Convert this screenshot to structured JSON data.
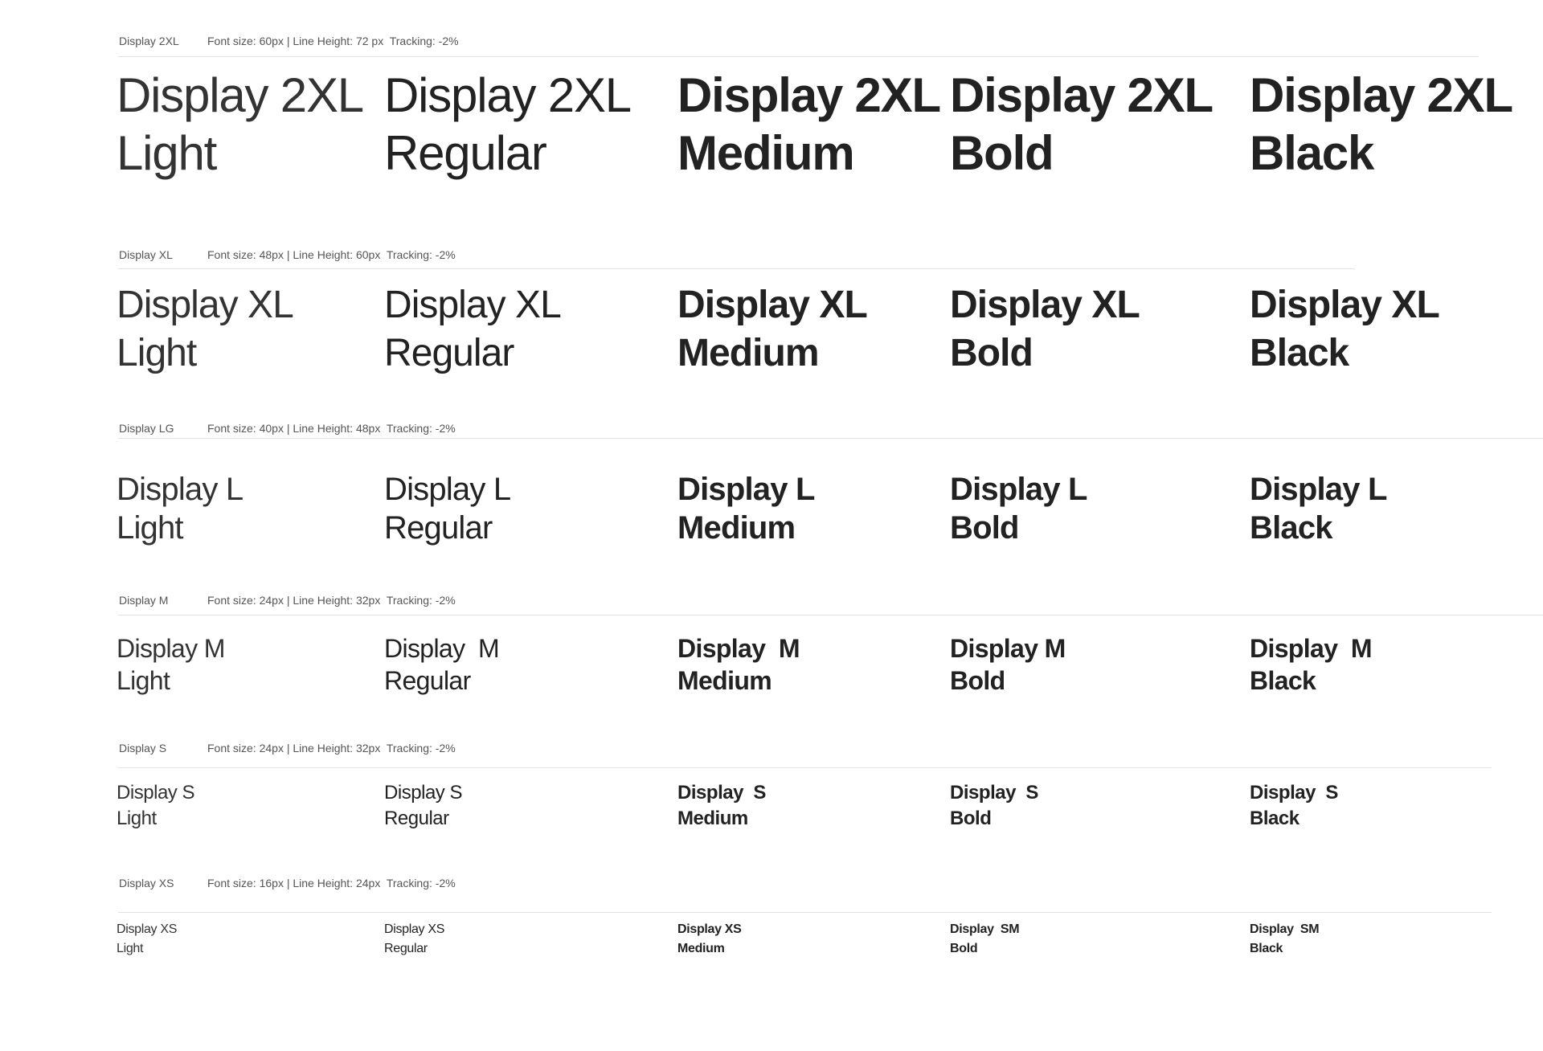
{
  "sections": [
    {
      "name": "Display 2XL",
      "spec": "Font size: 60px | Line Height: 72 px  Tracking: -2%",
      "samples": [
        [
          "Display 2XL",
          "Light"
        ],
        [
          "Display 2XL",
          "Regular"
        ],
        [
          "Display 2XL",
          "Medium"
        ],
        [
          "Display 2XL",
          "Bold"
        ],
        [
          "Display 2XL",
          "Black"
        ]
      ]
    },
    {
      "name": "Display XL",
      "spec": "Font size: 48px | Line Height: 60px  Tracking: -2%",
      "samples": [
        [
          "Display XL",
          "Light"
        ],
        [
          "Display XL",
          "Regular"
        ],
        [
          "Display XL",
          "Medium"
        ],
        [
          "Display XL",
          "Bold"
        ],
        [
          "Display XL",
          "Black"
        ]
      ]
    },
    {
      "name": "Display LG",
      "spec": "Font size: 40px | Line Height: 48px  Tracking: -2%",
      "samples": [
        [
          "Display L",
          "Light"
        ],
        [
          "Display L",
          "Regular"
        ],
        [
          "Display L",
          "Medium"
        ],
        [
          "Display L",
          "Bold"
        ],
        [
          "Display L",
          "Black"
        ]
      ]
    },
    {
      "name": "Display M",
      "spec": "Font size: 24px | Line Height: 32px  Tracking: -2%",
      "samples": [
        [
          "Display M",
          "Light"
        ],
        [
          "Display  M",
          "Regular"
        ],
        [
          "Display  M",
          "Medium"
        ],
        [
          "Display M",
          "Bold"
        ],
        [
          "Display  M",
          "Black"
        ]
      ]
    },
    {
      "name": "Display S",
      "spec": "Font size: 24px | Line Height: 32px  Tracking: -2%",
      "samples": [
        [
          "Display S",
          "Light"
        ],
        [
          "Display S",
          "Regular"
        ],
        [
          "Display  S",
          "Medium"
        ],
        [
          "Display  S",
          "Bold"
        ],
        [
          "Display  S",
          "Black"
        ]
      ]
    },
    {
      "name": "Display XS",
      "spec": "Font size: 16px | Line Height: 24px  Tracking: -2%",
      "samples": [
        [
          "Display XS",
          "Light"
        ],
        [
          "Display XS",
          "Regular"
        ],
        [
          "Display XS",
          "Medium"
        ],
        [
          "Display  SM",
          "Bold"
        ],
        [
          "Display  SM",
          "Black"
        ]
      ]
    }
  ]
}
